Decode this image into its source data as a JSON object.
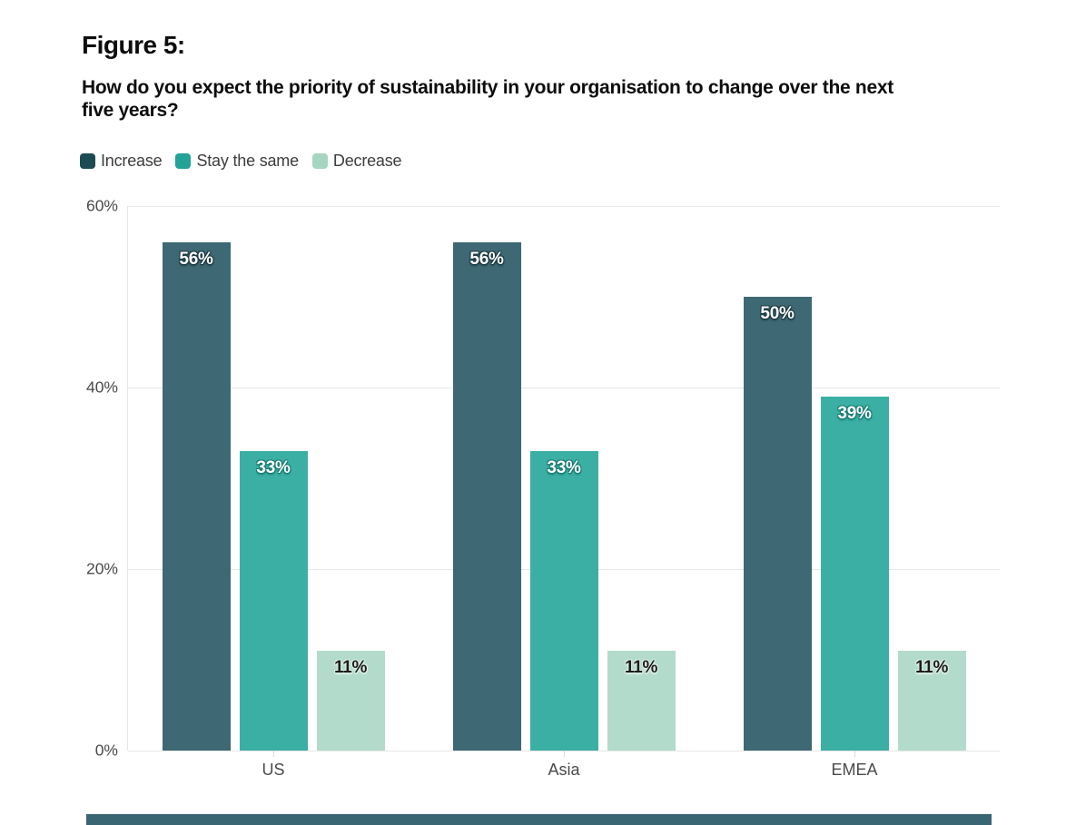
{
  "figure": {
    "label": "Figure 5:",
    "question_line1": "How do you expect the priority of sustainability in your organisation to change over the next",
    "question_line2": "five years?"
  },
  "series_styles": [
    {
      "name": "Increase",
      "legend_color": "#1d4b53",
      "bar_color": "#3d6874",
      "label_color": "#ffffff",
      "label_outline": "#1c3940"
    },
    {
      "name": "Stay the same",
      "legend_color": "#23a296",
      "bar_color": "#3bafa4",
      "label_color": "#ffffff",
      "label_outline": "#177c72"
    },
    {
      "name": "Decrease",
      "legend_color": "#a5d6c2",
      "bar_color": "#b2dbcb",
      "label_color": "#1c1c1c",
      "label_outline": "#ddefe6"
    }
  ],
  "chart_data": {
    "type": "bar",
    "categories": [
      "US",
      "Asia",
      "EMEA"
    ],
    "series": [
      {
        "name": "Increase",
        "values": [
          56,
          56,
          50
        ]
      },
      {
        "name": "Stay the same",
        "values": [
          33,
          33,
          39
        ]
      },
      {
        "name": "Decrease",
        "values": [
          11,
          11,
          11
        ]
      }
    ],
    "value_suffix": "%",
    "xlabel": "",
    "ylabel": "",
    "ylim": [
      0,
      60
    ],
    "yticks_top_to_bottom": [
      "60%",
      "40%",
      "20%",
      "0%"
    ],
    "grid": true,
    "legend_position": "top-left"
  },
  "footer_rule_color": "#3a6572"
}
